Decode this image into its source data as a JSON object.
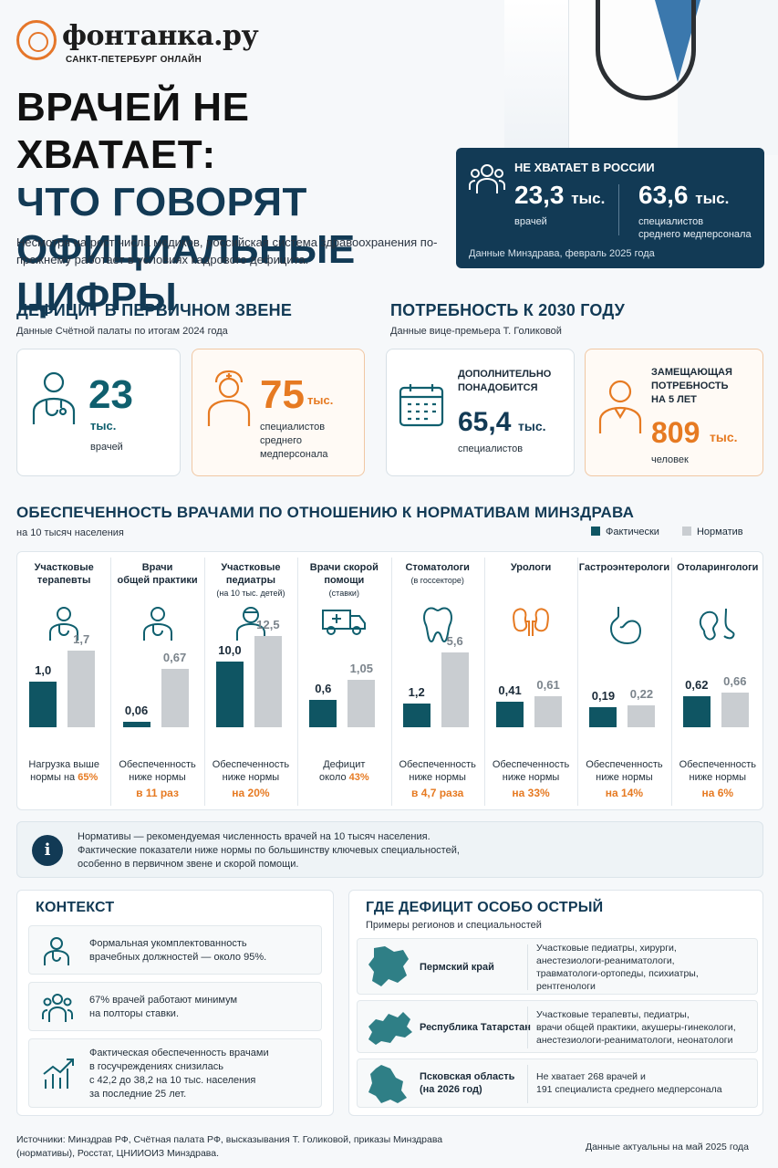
{
  "brand": {
    "name": "фонтанка.ру",
    "tagline": "САНКТ-ПЕТЕРБУРГ ОНЛАЙН"
  },
  "title": {
    "line1": "ВРАЧЕЙ НЕ ХВАТАЕТ:",
    "line2": "ЧТО ГОВОРЯТ",
    "line3": "ОФИЦИАЛЬНЫЕ ЦИФРЫ"
  },
  "lead": "Несмотря на рост числа медиков, российская система здравоохранения по-прежнему работает в условиях кадрового дефицита.",
  "shortage": {
    "title": "НЕ ХВАТАЕТ В РОССИИ",
    "doctors_value": "23,3",
    "doctors_unit": "тыс.",
    "doctors_label": "врачей",
    "nurses_value": "63,6",
    "nurses_unit": "тыс.",
    "nurses_label_1": "специалистов",
    "nurses_label_2": "среднего медперсонала",
    "source": "Данные Минздрава, февраль 2025 года"
  },
  "primary": {
    "heading": "ДЕФИЦИТ В ПЕРВИЧНОМ ЗВЕНЕ",
    "subheading": "Данные Счётной палаты по итогам 2024 года",
    "card1": {
      "value": "23",
      "unit": "тыс.",
      "label": "врачей"
    },
    "card2": {
      "value": "75",
      "unit": "тыс.",
      "label_1": "специалистов",
      "label_2": "среднего",
      "label_3": "медперсонала"
    }
  },
  "need2030": {
    "heading": "ПОТРЕБНОСТЬ К 2030 ГОДУ",
    "subheading": "Данные вице-премьера Т. Голиковой",
    "card1": {
      "cap_1": "ДОПОЛНИТЕЛЬНО",
      "cap_2": "ПОНАДОБИТСЯ",
      "value": "65,4",
      "unit": "тыс.",
      "label": "специалистов"
    },
    "card2": {
      "cap_1": "ЗАМЕЩАЮЩАЯ",
      "cap_2": "ПОТРЕБНОСТЬ",
      "cap_3": "НА 5 ЛЕТ",
      "value": "809",
      "unit": "тыс.",
      "label": "человек"
    }
  },
  "coverage": {
    "heading": "ОБЕСПЕЧЕННОСТЬ ВРАЧАМИ ПО ОТНОШЕНИЮ К НОРМАТИВАМ МИНЗДРАВА",
    "subheading": "на 10 тысяч населения",
    "legend_actual": "Фактически",
    "legend_norm": "Норматив"
  },
  "chart_data": {
    "type": "bar",
    "categories": [
      "Участковые терапевты",
      "Врачи общей практики",
      "Участковые педиатры",
      "Врачи скорой помощи",
      "Стоматологи",
      "Урологи",
      "Гастроэнтерологи",
      "Отоларингологи"
    ],
    "series": [
      {
        "name": "Фактически",
        "values": [
          1.0,
          0.06,
          10.0,
          0.6,
          1.2,
          0.41,
          0.19,
          0.62
        ]
      },
      {
        "name": "Норматив",
        "values": [
          1.7,
          0.67,
          12.5,
          1.05,
          5.6,
          0.61,
          0.22,
          0.66
        ]
      }
    ],
    "columns": [
      {
        "t1": "Участковые",
        "t2": "терапевты",
        "sub": "",
        "icon": "doctor-icon",
        "f": "1,0",
        "n": "1,7",
        "fh": 50,
        "nh": 84,
        "note1": "Нагрузка выше",
        "note2": "нормы на ",
        "hl": "65%"
      },
      {
        "t1": "Врачи",
        "t2": "общей практики",
        "sub": "",
        "icon": "doctor-icon",
        "f": "0,06",
        "n": "0,67",
        "fh": 6,
        "nh": 64,
        "note1": "Обеспеченность",
        "note2": "ниже нормы",
        "hl": "в 11 раз"
      },
      {
        "t1": "Участковые",
        "t2": "педиатры",
        "sub": "(на 10 тыс. детей)",
        "icon": "pediatrician-icon",
        "f": "10,0",
        "n": "12,5",
        "fh": 72,
        "nh": 100,
        "note1": "Обеспеченность",
        "note2": "ниже нормы",
        "hl": "на 20%"
      },
      {
        "t1": "Врачи скорой",
        "t2": "помощи",
        "sub": "(ставки)",
        "icon": "ambulance-icon",
        "f": "0,6",
        "n": "1,05",
        "fh": 30,
        "nh": 52,
        "note1": "Дефицит",
        "note2": "около ",
        "hl": "43%"
      },
      {
        "t1": "Стоматологи",
        "t2": "",
        "sub": "(в госсекторе)",
        "icon": "tooth-icon",
        "f": "1,2",
        "n": "5,6",
        "fh": 26,
        "nh": 82,
        "note1": "Обеспеченность",
        "note2": "ниже нормы",
        "hl": "в 4,7 раза"
      },
      {
        "t1": "Урологи",
        "t2": "",
        "sub": "",
        "icon": "kidneys-icon",
        "f": "0,41",
        "n": "0,61",
        "fh": 28,
        "nh": 34,
        "note1": "Обеспеченность",
        "note2": "ниже нормы",
        "hl": "на 33%"
      },
      {
        "t1": "Гастроэнтерологи",
        "t2": "",
        "sub": "",
        "icon": "stomach-icon",
        "f": "0,19",
        "n": "0,22",
        "fh": 22,
        "nh": 24,
        "note1": "Обеспеченность",
        "note2": "ниже нормы",
        "hl": "на 14%"
      },
      {
        "t1": "Отоларингологи",
        "t2": "",
        "sub": "",
        "icon": "ear-nose-icon",
        "f": "0,62",
        "n": "0,66",
        "fh": 34,
        "nh": 38,
        "note1": "Обеспеченность",
        "note2": "ниже нормы",
        "hl": "на 6%"
      }
    ],
    "colors": {
      "actual": "#0f5563",
      "norm": "#c9cdd1"
    }
  },
  "info": {
    "line1": "Нормативы — рекомендуемая численность врачей на 10 тысяч населения.",
    "line2": "Фактические показатели ниже нормы по большинству ключевых специальностей,",
    "line3": "особенно в первичном звене и скорой помощи."
  },
  "context": {
    "heading": "КОНТЕКСТ",
    "item1_1": "Формальная укомплектованность",
    "item1_2": "врачебных должностей — около 95%.",
    "item2_1": "67% врачей работают минимум",
    "item2_2": "на полторы ставки.",
    "item3_1": "Фактическая обеспеченность врачами",
    "item3_2": "в госучреждениях снизилась",
    "item3_3": "с 42,2 до 38,2 на 10 тыс. населения",
    "item3_4": "за последние 25 лет."
  },
  "acute": {
    "heading": "ГДЕ ДЕФИЦИТ ОСОБО ОСТРЫЙ",
    "subheading": "Примеры регионов и специальностей",
    "r1_name": "Пермский край",
    "r1_d1": "Участковые педиатры, хирурги,",
    "r1_d2": "анестезиологи-реаниматологи,",
    "r1_d3": "травматологи-ортопеды, психиатры,",
    "r1_d4": "рентгенологи",
    "r2_name": "Республика Татарстан",
    "r2_d1": "Участковые терапевты, педиатры,",
    "r2_d2": "врачи общей практики, акушеры-гинекологи,",
    "r2_d3": "анестезиологи-реаниматологи, неонатологи",
    "r3_name_1": "Псковская область",
    "r3_name_2": "(на 2026 год)",
    "r3_d1": "Не хватает 268 врачей и",
    "r3_d2": "191 специалиста среднего медперсонала"
  },
  "footer": {
    "sources_1": "Источники: Минздрав РФ, Счётная палата РФ, высказывания Т. Голиковой, приказы Минздрава",
    "sources_2": "(нормативы), Росстат, ЦНИИОИЗ Минздрава.",
    "actual": "Данные актуальны на май 2025 года"
  }
}
